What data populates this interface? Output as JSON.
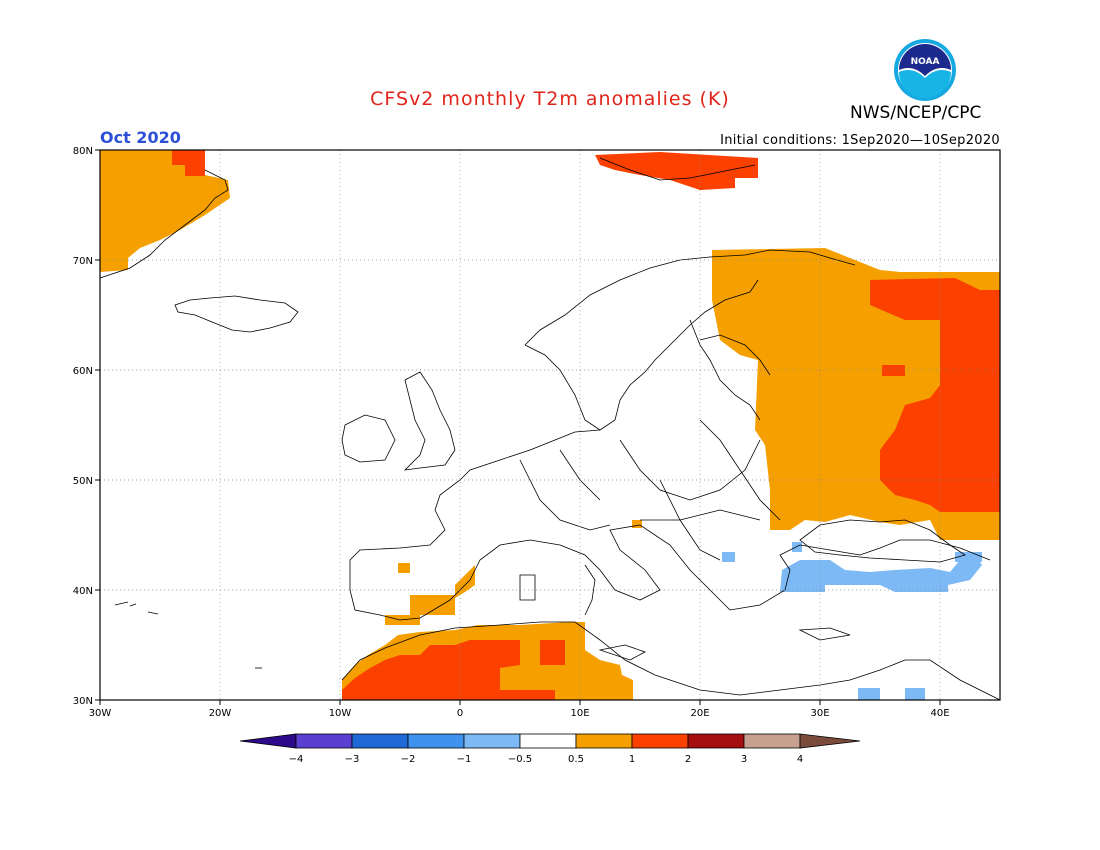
{
  "title": "CFSv2 monthly T2m anomalies (K)",
  "agency": "NWS/NCEP/CPC",
  "logo_text": "NOAA",
  "valid_month": "Oct 2020",
  "initial_conditions": "Initial conditions: 1Sep2020—10Sep2020",
  "lat_labels": [
    "30N",
    "40N",
    "50N",
    "60N",
    "70N",
    "80N"
  ],
  "lon_labels": [
    "30W",
    "20W",
    "10W",
    "0",
    "10E",
    "20E",
    "30E",
    "40E"
  ],
  "colorbar": {
    "labels": [
      "−4",
      "−3",
      "−2",
      "−1",
      "−0.5",
      "0.5",
      "1",
      "2",
      "3",
      "4"
    ],
    "colors": [
      "#2c0a8a",
      "#5a3fd0",
      "#1f6ad6",
      "#3f93ef",
      "#7dbaf5",
      "#ffffff",
      "#f5a000",
      "#fb4000",
      "#a60f0f",
      "#c8a090",
      "#7a4a3a"
    ]
  },
  "regions": {
    "anomaly_0.5_to_1": "#f5a000",
    "anomaly_1_to_2": "#fb4000",
    "anomaly_-1_to_-0.5": "#7dbaf5"
  }
}
